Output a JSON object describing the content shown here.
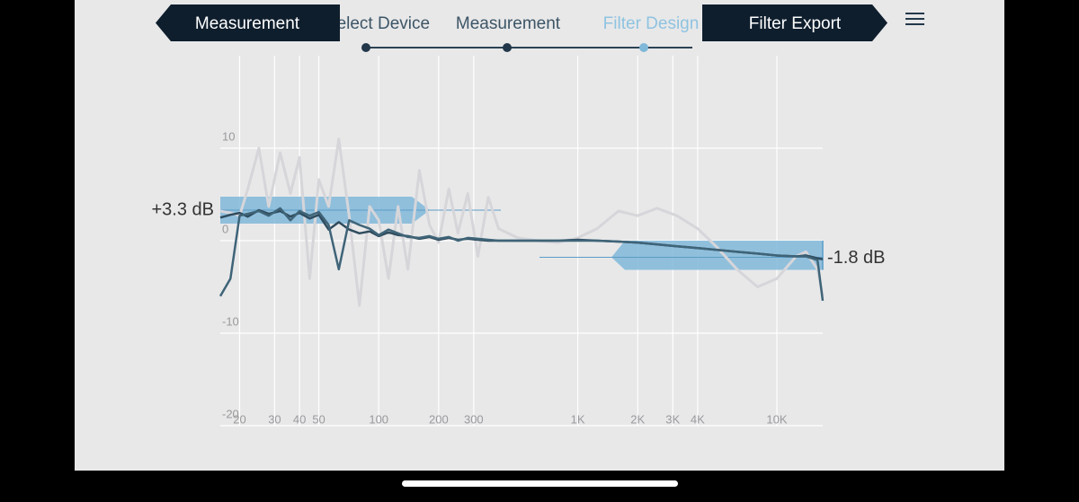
{
  "nav": {
    "back_button": "Measurement",
    "steps": [
      "Select Device",
      "Measurement",
      "Filter Design"
    ],
    "next_button": "Filter Export"
  },
  "chart_data": {
    "type": "line",
    "xscale": "log",
    "x": [
      16,
      18,
      20,
      22,
      25,
      28,
      32,
      36,
      40,
      45,
      50,
      56,
      63,
      71,
      80,
      90,
      100,
      112,
      125,
      140,
      160,
      180,
      200,
      225,
      250,
      280,
      315,
      355,
      400,
      500,
      630,
      800,
      1000,
      1250,
      1600,
      2000,
      2500,
      3150,
      4000,
      5000,
      6300,
      8000,
      10000,
      12500,
      14000,
      16000,
      17000
    ],
    "series": [
      {
        "color": "#d6d6da",
        "values": [
          3.2,
          3.0,
          2.7,
          5.6,
          10,
          3.7,
          9.5,
          5.1,
          9,
          -4.1,
          6.6,
          3.7,
          11,
          2.7,
          -7,
          3.7,
          2.2,
          -4.1,
          3.7,
          -3.1,
          7.6,
          1.7,
          -0.2,
          5.6,
          0.8,
          5.1,
          -1.7,
          4.7,
          1.3,
          0.3,
          0,
          -0.2,
          0.3,
          1.3,
          3.2,
          2.7,
          3.5,
          2.7,
          1.3,
          -0.7,
          -3.1,
          -5,
          -4.1,
          -1.7,
          -1.2,
          -3.1,
          -6
        ]
      },
      {
        "color": "#2f4c5e",
        "values": [
          2.5,
          2.8,
          3.0,
          2.6,
          3.3,
          2.9,
          3.2,
          2.6,
          3.0,
          2.4,
          2.8,
          1.2,
          2.0,
          1.2,
          0.8,
          1.0,
          0.5,
          0.9,
          0.6,
          0.5,
          0.2,
          0.4,
          0.1,
          0.3,
          0.1,
          0.2,
          0.1,
          0,
          0,
          0,
          0,
          0,
          0.1,
          0,
          -0.1,
          -0.2,
          -0.4,
          -0.6,
          -0.8,
          -1,
          -1.2,
          -1.4,
          -1.6,
          -1.7,
          -1.6,
          -1.9,
          -2.0
        ]
      },
      {
        "color": "#3f6478",
        "values": [
          -6,
          -4.1,
          2.7,
          2.9,
          3.2,
          2.7,
          3.5,
          2.2,
          3.2,
          2.7,
          3.1,
          1.7,
          -3.1,
          2.2,
          1.7,
          1.3,
          0.6,
          1.2,
          0.8,
          0.4,
          0.3,
          0.5,
          0.2,
          0.4,
          0,
          0.3,
          0.2,
          0.1,
          0,
          0,
          0,
          0,
          0,
          0,
          -0.1,
          -0.2,
          -0.4,
          -0.6,
          -0.8,
          -1,
          -1.2,
          -1.4,
          -1.6,
          -1.7,
          -1.7,
          -2.1,
          -6.5
        ]
      }
    ],
    "xlim": [
      16,
      17000
    ],
    "xticks": [
      20,
      30,
      40,
      50,
      100,
      200,
      300,
      {
        "value": 1000,
        "label": "1K"
      },
      {
        "value": 2000,
        "label": "2K"
      },
      {
        "value": 3000,
        "label": "3K"
      },
      {
        "value": 4000,
        "label": "4K"
      },
      {
        "value": 10000,
        "label": "10K"
      }
    ],
    "ylim": [
      -20,
      20
    ],
    "yticks": [
      10,
      0,
      -10,
      -20
    ],
    "grid": true,
    "filters": [
      {
        "value": 3.3,
        "label": "+3.3 dB"
      },
      {
        "value": -1.8,
        "label": "-1.8 dB"
      }
    ]
  }
}
